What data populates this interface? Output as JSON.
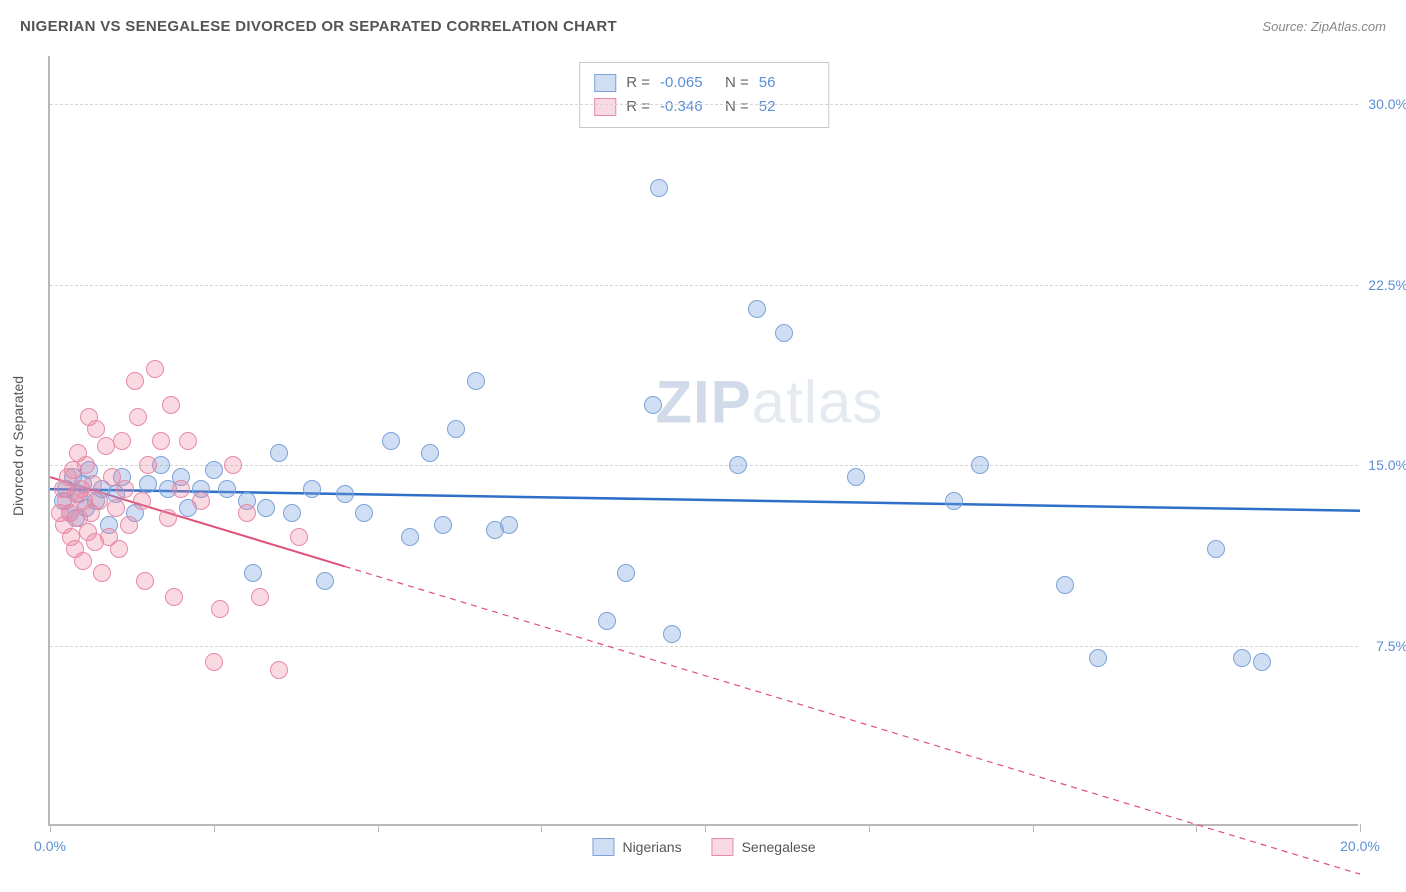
{
  "title": "NIGERIAN VS SENEGALESE DIVORCED OR SEPARATED CORRELATION CHART",
  "source_label": "Source:",
  "source_name": "ZipAtlas.com",
  "y_axis_label": "Divorced or Separated",
  "watermark_strong": "ZIP",
  "watermark_light": "atlas",
  "chart": {
    "type": "scatter",
    "xlim": [
      0,
      20
    ],
    "ylim": [
      0,
      32
    ],
    "x_ticks": [
      0,
      2.5,
      5,
      7.5,
      10,
      12.5,
      15,
      17.5,
      20
    ],
    "x_tick_labels": {
      "0": "0.0%",
      "20": "20.0%"
    },
    "y_ticks": [
      7.5,
      15.0,
      22.5,
      30.0
    ],
    "y_tick_labels": [
      "7.5%",
      "15.0%",
      "22.5%",
      "30.0%"
    ],
    "grid_style": "dashed",
    "grid_color": "#d5d5d5",
    "axis_color": "#b8b8b8",
    "background_color": "#ffffff",
    "marker_radius": 9,
    "series": [
      {
        "name": "Nigerians",
        "fill_color": "rgba(120,160,220,0.35)",
        "stroke_color": "#7da3d9",
        "trend": {
          "y_at_x0": 14.0,
          "y_at_xmax": 13.1,
          "color": "#2f6fc9",
          "width": 2.5,
          "dash": "solid"
        },
        "R": "-0.065",
        "N": "56",
        "points": [
          [
            0.2,
            13.5
          ],
          [
            0.25,
            14.0
          ],
          [
            0.3,
            13.0
          ],
          [
            0.35,
            14.5
          ],
          [
            0.4,
            12.8
          ],
          [
            0.45,
            13.8
          ],
          [
            0.5,
            14.2
          ],
          [
            0.55,
            13.2
          ],
          [
            0.6,
            14.8
          ],
          [
            0.7,
            13.5
          ],
          [
            0.8,
            14.0
          ],
          [
            0.9,
            12.5
          ],
          [
            1.0,
            13.8
          ],
          [
            1.1,
            14.5
          ],
          [
            1.3,
            13.0
          ],
          [
            1.5,
            14.2
          ],
          [
            1.7,
            15.0
          ],
          [
            1.8,
            14.0
          ],
          [
            2.0,
            14.5
          ],
          [
            2.1,
            13.2
          ],
          [
            2.3,
            14.0
          ],
          [
            2.5,
            14.8
          ],
          [
            2.7,
            14.0
          ],
          [
            3.0,
            13.5
          ],
          [
            3.1,
            10.5
          ],
          [
            3.3,
            13.2
          ],
          [
            3.5,
            15.5
          ],
          [
            3.7,
            13.0
          ],
          [
            4.0,
            14.0
          ],
          [
            4.2,
            10.2
          ],
          [
            4.5,
            13.8
          ],
          [
            4.8,
            13.0
          ],
          [
            5.2,
            16.0
          ],
          [
            5.5,
            12.0
          ],
          [
            5.8,
            15.5
          ],
          [
            6.0,
            12.5
          ],
          [
            6.2,
            16.5
          ],
          [
            6.5,
            18.5
          ],
          [
            6.8,
            12.3
          ],
          [
            7.0,
            12.5
          ],
          [
            8.5,
            8.5
          ],
          [
            8.8,
            10.5
          ],
          [
            9.2,
            17.5
          ],
          [
            9.3,
            26.5
          ],
          [
            9.5,
            8.0
          ],
          [
            10.5,
            15.0
          ],
          [
            10.8,
            21.5
          ],
          [
            11.2,
            20.5
          ],
          [
            12.3,
            14.5
          ],
          [
            13.8,
            13.5
          ],
          [
            14.2,
            15.0
          ],
          [
            15.5,
            10.0
          ],
          [
            16.0,
            7.0
          ],
          [
            17.8,
            11.5
          ],
          [
            18.2,
            7.0
          ],
          [
            18.5,
            6.8
          ]
        ]
      },
      {
        "name": "Senegalese",
        "fill_color": "rgba(235,130,160,0.30)",
        "stroke_color": "#e88aa7",
        "trend": {
          "y_at_x0": 14.5,
          "y_at_xmax": -2.0,
          "color": "#e05078",
          "width": 2,
          "dash": "solid-then-dashed",
          "solid_until_x": 4.5
        },
        "R": "-0.346",
        "N": "52",
        "points": [
          [
            0.15,
            13.0
          ],
          [
            0.2,
            14.0
          ],
          [
            0.22,
            12.5
          ],
          [
            0.25,
            13.5
          ],
          [
            0.28,
            14.5
          ],
          [
            0.3,
            13.0
          ],
          [
            0.32,
            12.0
          ],
          [
            0.35,
            14.8
          ],
          [
            0.38,
            11.5
          ],
          [
            0.4,
            13.8
          ],
          [
            0.42,
            15.5
          ],
          [
            0.45,
            12.8
          ],
          [
            0.48,
            14.0
          ],
          [
            0.5,
            11.0
          ],
          [
            0.52,
            13.5
          ],
          [
            0.55,
            15.0
          ],
          [
            0.58,
            12.2
          ],
          [
            0.6,
            17.0
          ],
          [
            0.62,
            13.0
          ],
          [
            0.65,
            14.2
          ],
          [
            0.68,
            11.8
          ],
          [
            0.7,
            16.5
          ],
          [
            0.75,
            13.5
          ],
          [
            0.8,
            10.5
          ],
          [
            0.85,
            15.8
          ],
          [
            0.9,
            12.0
          ],
          [
            0.95,
            14.5
          ],
          [
            1.0,
            13.2
          ],
          [
            1.05,
            11.5
          ],
          [
            1.1,
            16.0
          ],
          [
            1.15,
            14.0
          ],
          [
            1.2,
            12.5
          ],
          [
            1.3,
            18.5
          ],
          [
            1.35,
            17.0
          ],
          [
            1.4,
            13.5
          ],
          [
            1.45,
            10.2
          ],
          [
            1.5,
            15.0
          ],
          [
            1.6,
            19.0
          ],
          [
            1.7,
            16.0
          ],
          [
            1.8,
            12.8
          ],
          [
            1.85,
            17.5
          ],
          [
            1.9,
            9.5
          ],
          [
            2.0,
            14.0
          ],
          [
            2.1,
            16.0
          ],
          [
            2.3,
            13.5
          ],
          [
            2.5,
            6.8
          ],
          [
            2.6,
            9.0
          ],
          [
            2.8,
            15.0
          ],
          [
            3.0,
            13.0
          ],
          [
            3.2,
            9.5
          ],
          [
            3.5,
            6.5
          ],
          [
            3.8,
            12.0
          ]
        ]
      }
    ]
  },
  "stats_box": {
    "rows": [
      {
        "swatch_fill": "rgba(120,160,220,0.35)",
        "swatch_stroke": "#7da3d9",
        "R": "-0.065",
        "N": "56"
      },
      {
        "swatch_fill": "rgba(235,130,160,0.30)",
        "swatch_stroke": "#e88aa7",
        "R": "-0.346",
        "N": "52"
      }
    ],
    "R_label": "R =",
    "N_label": "N ="
  },
  "bottom_legend": [
    {
      "label": "Nigerians",
      "swatch_fill": "rgba(120,160,220,0.35)",
      "swatch_stroke": "#7da3d9"
    },
    {
      "label": "Senegalese",
      "swatch_fill": "rgba(235,130,160,0.30)",
      "swatch_stroke": "#e88aa7"
    }
  ]
}
